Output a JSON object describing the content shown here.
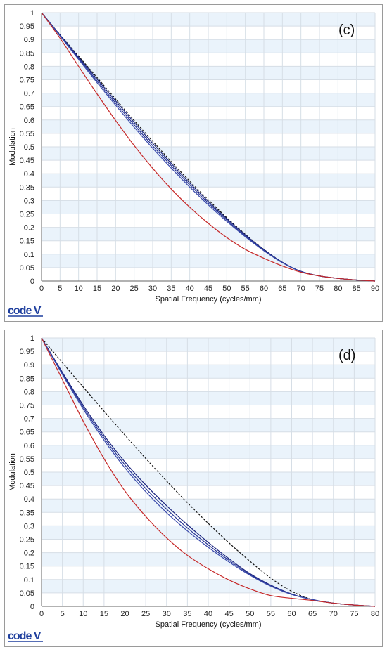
{
  "logo_text": "code V",
  "chart_data": [
    {
      "type": "line",
      "panel_label": "(c)",
      "xlabel": "Spatial Frequency (cycles/mm)",
      "ylabel": "Modulation",
      "xlim": [
        0,
        90
      ],
      "ylim": [
        0,
        1
      ],
      "xticks": [
        0,
        5,
        10,
        15,
        20,
        25,
        30,
        35,
        40,
        45,
        50,
        55,
        60,
        65,
        70,
        75,
        80,
        85,
        90
      ],
      "yticks": [
        0,
        0.05,
        0.1,
        0.15,
        0.2,
        0.25,
        0.3,
        0.35,
        0.4,
        0.45,
        0.5,
        0.55,
        0.6,
        0.65,
        0.7,
        0.75,
        0.8,
        0.85,
        0.9,
        0.95,
        1
      ],
      "ytick_labels": [
        "0",
        "0.05",
        "0.1",
        "0.15",
        "0.2",
        "0.25",
        "0.3",
        "0.35",
        "0.4",
        "0.45",
        "0.5",
        "0.55",
        "0.6",
        "0.65",
        "0.7",
        "0.75",
        "0.8",
        "0.85",
        "0.9",
        "0.95",
        "1"
      ],
      "grid": true,
      "band_color": "#eaf3fb",
      "series": [
        {
          "color": "#111111",
          "dash": "3,2",
          "x": [
            0,
            5,
            10,
            15,
            20,
            25,
            30,
            35,
            40,
            45,
            50,
            55,
            60,
            65,
            70,
            75,
            80,
            85,
            90
          ],
          "y": [
            1,
            0.918,
            0.838,
            0.758,
            0.678,
            0.598,
            0.521,
            0.445,
            0.372,
            0.303,
            0.236,
            0.174,
            0.118,
            0.07,
            0.035,
            0.019,
            0.01,
            0.004,
            0
          ]
        },
        {
          "color": "#1a237e",
          "dash": "",
          "x": [
            0,
            5,
            10,
            15,
            20,
            25,
            30,
            35,
            40,
            45,
            50,
            55,
            60,
            65,
            70,
            75,
            80,
            85,
            90
          ],
          "y": [
            1,
            0.917,
            0.834,
            0.752,
            0.671,
            0.591,
            0.513,
            0.438,
            0.365,
            0.297,
            0.232,
            0.172,
            0.117,
            0.07,
            0.036,
            0.019,
            0.01,
            0.004,
            0
          ]
        },
        {
          "color": "#283593",
          "dash": "",
          "x": [
            0,
            5,
            10,
            15,
            20,
            25,
            30,
            35,
            40,
            45,
            50,
            55,
            60,
            65,
            70,
            75,
            80,
            85,
            90
          ],
          "y": [
            1,
            0.915,
            0.83,
            0.745,
            0.663,
            0.582,
            0.504,
            0.43,
            0.358,
            0.291,
            0.227,
            0.168,
            0.115,
            0.069,
            0.036,
            0.019,
            0.01,
            0.004,
            0
          ]
        },
        {
          "color": "#3949ab",
          "dash": "",
          "x": [
            0,
            5,
            10,
            15,
            20,
            25,
            30,
            35,
            40,
            45,
            50,
            55,
            60,
            65,
            70,
            75,
            80,
            85,
            90
          ],
          "y": [
            1,
            0.913,
            0.826,
            0.739,
            0.655,
            0.573,
            0.495,
            0.421,
            0.35,
            0.284,
            0.222,
            0.165,
            0.113,
            0.068,
            0.035,
            0.019,
            0.01,
            0.004,
            0
          ]
        },
        {
          "color": "#c62828",
          "dash": "",
          "x": [
            0,
            5,
            10,
            15,
            20,
            25,
            30,
            35,
            40,
            45,
            50,
            55,
            60,
            65,
            70,
            75,
            80,
            85,
            90
          ],
          "y": [
            1,
            0.905,
            0.8,
            0.697,
            0.598,
            0.505,
            0.42,
            0.343,
            0.275,
            0.215,
            0.162,
            0.118,
            0.085,
            0.056,
            0.033,
            0.019,
            0.01,
            0.004,
            0
          ]
        }
      ]
    },
    {
      "type": "line",
      "panel_label": "(d)",
      "xlabel": "Spatial Frequency (cycles/mm)",
      "ylabel": "Modulation",
      "xlim": [
        0,
        80
      ],
      "ylim": [
        0,
        1
      ],
      "xticks": [
        0,
        5,
        10,
        15,
        20,
        25,
        30,
        35,
        40,
        45,
        50,
        55,
        60,
        65,
        70,
        75,
        80
      ],
      "yticks": [
        0,
        0.05,
        0.1,
        0.15,
        0.2,
        0.25,
        0.3,
        0.35,
        0.4,
        0.45,
        0.5,
        0.55,
        0.6,
        0.65,
        0.7,
        0.75,
        0.8,
        0.85,
        0.9,
        0.95,
        1
      ],
      "ytick_labels": [
        "0",
        "0.05",
        "0.1",
        "0.15",
        "0.2",
        "0.25",
        "0.3",
        "0.35",
        "0.4",
        "0.45",
        "0.5",
        "0.55",
        "0.6",
        "0.65",
        "0.7",
        "0.75",
        "0.8",
        "0.85",
        "0.9",
        "0.95",
        "1"
      ],
      "grid": true,
      "band_color": "#eaf3fb",
      "series": [
        {
          "color": "#111111",
          "dash": "3,2",
          "x": [
            0,
            5,
            10,
            15,
            20,
            25,
            30,
            35,
            40,
            45,
            50,
            55,
            60,
            65,
            70,
            75,
            80
          ],
          "y": [
            1,
            0.908,
            0.817,
            0.727,
            0.638,
            0.551,
            0.467,
            0.386,
            0.309,
            0.236,
            0.168,
            0.105,
            0.056,
            0.025,
            0.012,
            0.005,
            0
          ]
        },
        {
          "color": "#1a237e",
          "dash": "",
          "x": [
            0,
            5,
            10,
            15,
            20,
            25,
            30,
            35,
            40,
            45,
            50,
            55,
            60,
            65,
            70,
            75,
            80
          ],
          "y": [
            1,
            0.872,
            0.749,
            0.637,
            0.538,
            0.452,
            0.375,
            0.304,
            0.238,
            0.177,
            0.122,
            0.079,
            0.046,
            0.025,
            0.012,
            0.005,
            0
          ]
        },
        {
          "color": "#283593",
          "dash": "",
          "x": [
            0,
            5,
            10,
            15,
            20,
            25,
            30,
            35,
            40,
            45,
            50,
            55,
            60,
            65,
            70,
            75,
            80
          ],
          "y": [
            1,
            0.868,
            0.742,
            0.628,
            0.527,
            0.439,
            0.362,
            0.292,
            0.229,
            0.171,
            0.119,
            0.077,
            0.045,
            0.025,
            0.012,
            0.005,
            0
          ]
        },
        {
          "color": "#3949ab",
          "dash": "",
          "x": [
            0,
            5,
            10,
            15,
            20,
            25,
            30,
            35,
            40,
            45,
            50,
            55,
            60,
            65,
            70,
            75,
            80
          ],
          "y": [
            1,
            0.864,
            0.735,
            0.619,
            0.516,
            0.427,
            0.349,
            0.281,
            0.22,
            0.165,
            0.116,
            0.075,
            0.044,
            0.025,
            0.012,
            0.005,
            0
          ]
        },
        {
          "color": "#c62828",
          "dash": "",
          "x": [
            0,
            5,
            10,
            15,
            20,
            25,
            30,
            35,
            40,
            45,
            50,
            55,
            60,
            65,
            70,
            75,
            80
          ],
          "y": [
            1,
            0.845,
            0.69,
            0.55,
            0.43,
            0.335,
            0.255,
            0.19,
            0.14,
            0.098,
            0.065,
            0.04,
            0.03,
            0.022,
            0.012,
            0.005,
            0
          ]
        }
      ]
    }
  ]
}
